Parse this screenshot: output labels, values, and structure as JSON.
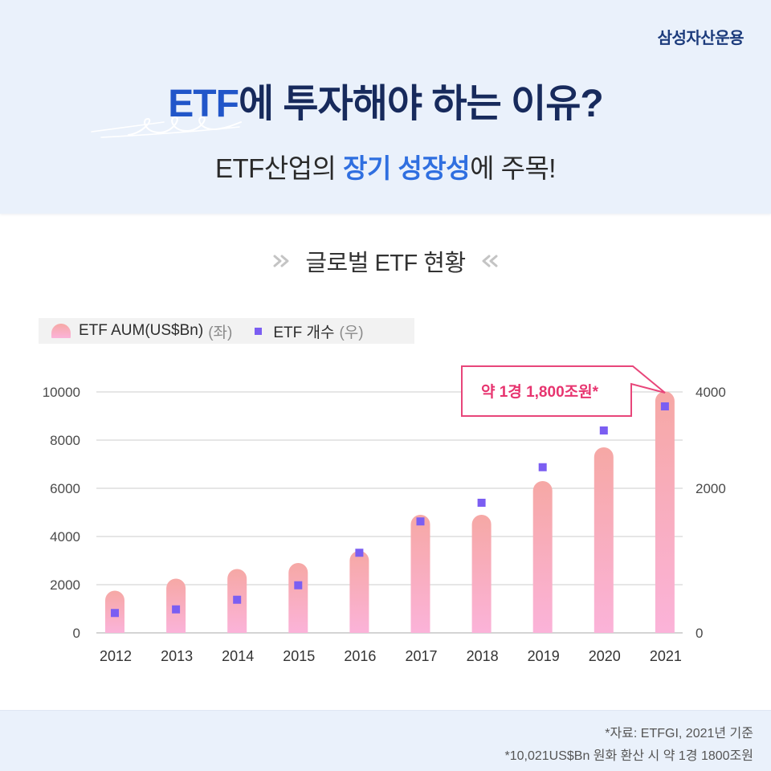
{
  "brand": "삼성자산운용",
  "header": {
    "title": {
      "highlight": "ETF",
      "rest": "에 투자해야 하는 이유?"
    },
    "subtitle": {
      "pre": "ETF산업의 ",
      "highlight": "장기 성장성",
      "post": "에 주목!"
    }
  },
  "section": {
    "title": "글로벌 ETF 현황"
  },
  "icons": {
    "section_left": "double-chevron-right-icon",
    "section_right": "double-chevron-left-icon",
    "legend_aum": "rounded-bar-swatch-icon",
    "legend_count": "square-swatch-icon"
  },
  "colors": {
    "band_background": "#eaf1fb",
    "brand": "#1c3b7c",
    "title_text": "#172a5c",
    "title_accent": "#2156c9",
    "subtitle_accent": "#2f6fe0",
    "bar_top": "#f6a8a5",
    "bar_bottom": "#fbb3d9",
    "count_marker": "#7b5ef2",
    "callout": "#e7346f"
  },
  "chart_data": {
    "type": "bar",
    "categories": [
      "2012",
      "2013",
      "2014",
      "2015",
      "2016",
      "2017",
      "2018",
      "2019",
      "2020",
      "2021"
    ],
    "series": [
      {
        "name": "ETF AUM(US$Bn)",
        "axis_note": "(좌)",
        "type": "bar",
        "values": [
          1750,
          2250,
          2650,
          2900,
          3400,
          4900,
          4900,
          6300,
          7700,
          10021
        ]
      },
      {
        "name": "ETF 개수",
        "axis_note": "(우)",
        "type": "scatter",
        "values": [
          330,
          390,
          550,
          790,
          1330,
          1850,
          2160,
          2750,
          3360,
          3760
        ]
      }
    ],
    "y_left": {
      "ticks": [
        "10000",
        "8000",
        "6000",
        "4000",
        "2000",
        "0"
      ],
      "ylim": [
        0,
        10000
      ]
    },
    "y_right": {
      "ticks": [
        "4000",
        "2000",
        "0"
      ],
      "ylim": [
        0,
        4000
      ]
    },
    "grid": true,
    "legend_position": "top-left",
    "annotation": {
      "text": "약 1경 1,800조원*"
    }
  },
  "footer": {
    "source": "*자료: ETFGI, 2021년 기준",
    "note": "*10,021US$Bn 원화 환산 시 약 1경 1800조원"
  }
}
